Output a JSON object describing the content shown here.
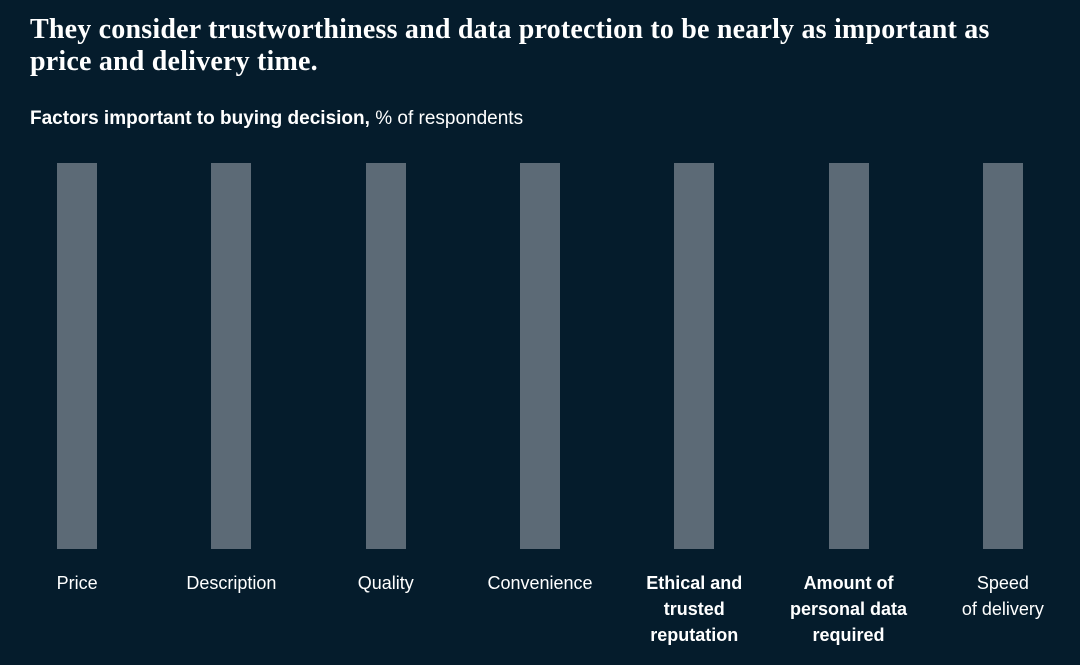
{
  "page": {
    "background_color": "#051c2c",
    "text_color": "#ffffff",
    "title": "They consider trustworthiness and data protection to be nearly as important as price and delivery time.",
    "subtitle_bold": "Factors important to buying decision,",
    "subtitle_rest": " % of respondents"
  },
  "chart_data": {
    "type": "bar",
    "title": "Factors important to buying decision",
    "ylabel": "% of respondents",
    "xlabel": "",
    "categories": [
      "Price",
      "Description",
      "Quality",
      "Convenience",
      "Ethical and trusted reputation",
      "Amount of personal data required",
      "Speed of delivery"
    ],
    "values": [
      1,
      1,
      1,
      1,
      1,
      1,
      1
    ],
    "values_note": "all seven bars are rendered at identical full height; no numeric axis, gridlines, or data labels are visible",
    "bar_color": "#5c6a76",
    "grid": false,
    "legend": false,
    "axis_visible": false,
    "emphasized_categories": [
      "Ethical and trusted reputation",
      "Amount of personal data required"
    ],
    "bars": [
      {
        "label": "Price",
        "lines": [
          "Price"
        ],
        "bold": false,
        "value": 1
      },
      {
        "label": "Description",
        "lines": [
          "Description"
        ],
        "bold": false,
        "value": 1
      },
      {
        "label": "Quality",
        "lines": [
          "Quality"
        ],
        "bold": false,
        "value": 1
      },
      {
        "label": "Convenience",
        "lines": [
          "Convenience"
        ],
        "bold": false,
        "value": 1
      },
      {
        "label": "Ethical and trusted reputation",
        "lines": [
          "Ethical and",
          "trusted",
          "reputation"
        ],
        "bold": true,
        "value": 1
      },
      {
        "label": "Amount of personal data required",
        "lines": [
          "Amount of",
          "personal data",
          "required"
        ],
        "bold": true,
        "value": 1
      },
      {
        "label": "Speed of delivery",
        "lines": [
          "Speed",
          "of delivery"
        ],
        "bold": false,
        "value": 1
      }
    ]
  }
}
